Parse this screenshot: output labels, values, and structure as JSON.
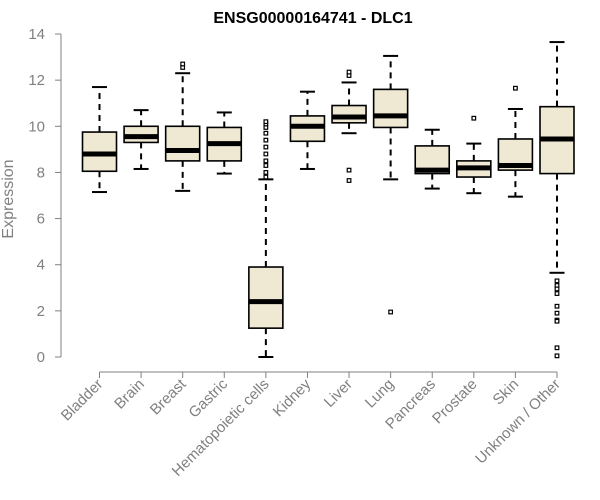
{
  "chart_data": {
    "type": "boxplot",
    "title": "ENSG00000164741 - DLC1",
    "xlabel": "",
    "ylabel": "Expression",
    "ylim": [
      0,
      14
    ],
    "yticks": [
      0,
      2,
      4,
      6,
      8,
      10,
      12,
      14
    ],
    "box_fill": "#efe8d2",
    "box_stroke": "#000000",
    "axis_color": "#808080",
    "categories": [
      "Bladder",
      "Brain",
      "Breast",
      "Gastric",
      "Hematopoietic cells",
      "Kidney",
      "Liver",
      "Lung",
      "Pancreas",
      "Prostate",
      "Skin",
      "Unknown / Other"
    ],
    "boxes": [
      {
        "label": "Bladder",
        "whisker_low": 7.15,
        "q1": 8.05,
        "median": 8.8,
        "q3": 9.75,
        "whisker_high": 11.7,
        "outliers": []
      },
      {
        "label": "Brain",
        "whisker_low": 8.15,
        "q1": 9.3,
        "median": 9.55,
        "q3": 10.0,
        "whisker_high": 10.7,
        "outliers": []
      },
      {
        "label": "Breast",
        "whisker_low": 7.2,
        "q1": 8.5,
        "median": 8.95,
        "q3": 10.0,
        "whisker_high": 12.3,
        "outliers": [
          12.55,
          12.7
        ]
      },
      {
        "label": "Gastric",
        "whisker_low": 7.95,
        "q1": 8.5,
        "median": 9.25,
        "q3": 9.95,
        "whisker_high": 10.6,
        "outliers": []
      },
      {
        "label": "Hematopoietic cells",
        "whisker_low": 0.0,
        "q1": 1.25,
        "median": 2.4,
        "q3": 3.9,
        "whisker_high": 7.7,
        "outliers": [
          7.8,
          8.0,
          8.3,
          8.5,
          8.8,
          9.1,
          9.4,
          9.7,
          9.95,
          10.1,
          10.2
        ]
      },
      {
        "label": "Kidney",
        "whisker_low": 8.15,
        "q1": 9.35,
        "median": 10.0,
        "q3": 10.45,
        "whisker_high": 11.5,
        "outliers": []
      },
      {
        "label": "Liver",
        "whisker_low": 9.7,
        "q1": 10.15,
        "median": 10.4,
        "q3": 10.9,
        "whisker_high": 11.9,
        "outliers": [
          12.2,
          12.35,
          8.1,
          7.65
        ]
      },
      {
        "label": "Lung",
        "whisker_low": 7.7,
        "q1": 9.95,
        "median": 10.45,
        "q3": 11.6,
        "whisker_high": 13.05,
        "outliers": [
          1.95
        ]
      },
      {
        "label": "Pancreas",
        "whisker_low": 7.3,
        "q1": 7.95,
        "median": 8.1,
        "q3": 9.15,
        "whisker_high": 9.85,
        "outliers": []
      },
      {
        "label": "Prostate",
        "whisker_low": 7.1,
        "q1": 7.8,
        "median": 8.2,
        "q3": 8.5,
        "whisker_high": 9.25,
        "outliers": [
          10.35
        ]
      },
      {
        "label": "Skin",
        "whisker_low": 6.95,
        "q1": 8.1,
        "median": 8.3,
        "q3": 9.45,
        "whisker_high": 10.75,
        "outliers": [
          11.65
        ]
      },
      {
        "label": "Unknown / Other",
        "whisker_low": 3.65,
        "q1": 7.95,
        "median": 9.45,
        "q3": 10.85,
        "whisker_high": 13.65,
        "outliers": [
          3.3,
          3.1,
          2.95,
          2.75,
          2.2,
          1.9,
          1.6,
          1.55,
          0.4,
          0.05
        ]
      }
    ]
  }
}
